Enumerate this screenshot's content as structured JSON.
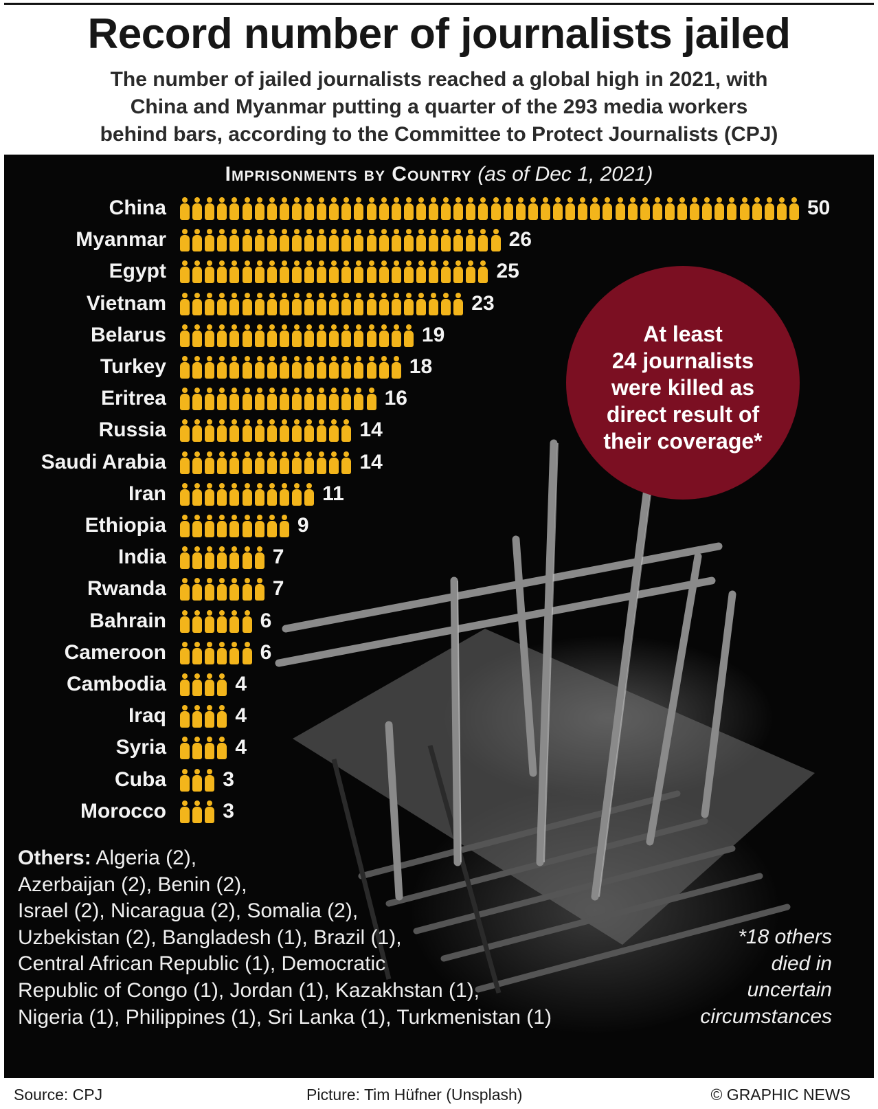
{
  "header": {
    "title": "Record number of journalists jailed",
    "subtitle_lines": [
      "The number of jailed journalists reached a global high in 2021, with",
      "China and Myanmar putting a quarter of the 293 media workers",
      "behind bars, according to the Committee to Protect Journalists (CPJ)"
    ]
  },
  "chart_data": {
    "type": "bar",
    "title": "Imprisonments by Country",
    "subtitle": "(as of Dec 1, 2021)",
    "unit": "journalists jailed (one icon per journalist)",
    "categories": [
      "China",
      "Myanmar",
      "Egypt",
      "Vietnam",
      "Belarus",
      "Turkey",
      "Eritrea",
      "Russia",
      "Saudi Arabia",
      "Iran",
      "Ethiopia",
      "India",
      "Rwanda",
      "Bahrain",
      "Cameroon",
      "Cambodia",
      "Iraq",
      "Syria",
      "Cuba",
      "Morocco"
    ],
    "values": [
      50,
      26,
      25,
      23,
      19,
      18,
      16,
      14,
      14,
      11,
      9,
      7,
      7,
      6,
      6,
      4,
      4,
      4,
      3,
      3
    ],
    "colors": {
      "icon": "#f3b51b",
      "callout": "#7b0f22"
    }
  },
  "callout": {
    "lines": [
      "At least",
      "24 journalists",
      "were killed as",
      "direct result of",
      "their coverage*"
    ]
  },
  "others": {
    "label": "Others:",
    "lines": [
      " Algeria (2),",
      "Azerbaijan (2), Benin (2),",
      "Israel (2), Nicaragua (2), Somalia (2),",
      "Uzbekistan (2), Bangladesh (1), Brazil (1),",
      "Central African Republic (1), Democratic",
      "Republic of Congo (1), Jordan (1), Kazakhstan (1),",
      "Nigeria (1), Philippines (1), Sri Lanka (1), Turkmenistan (1)"
    ]
  },
  "footnote": {
    "lines": [
      "*18 others",
      "died in",
      "uncertain",
      "circumstances"
    ]
  },
  "footer": {
    "source": "Source: CPJ",
    "picture": "Picture: Tim Hüfner (Unsplash)",
    "credit": "© GRAPHIC NEWS"
  }
}
